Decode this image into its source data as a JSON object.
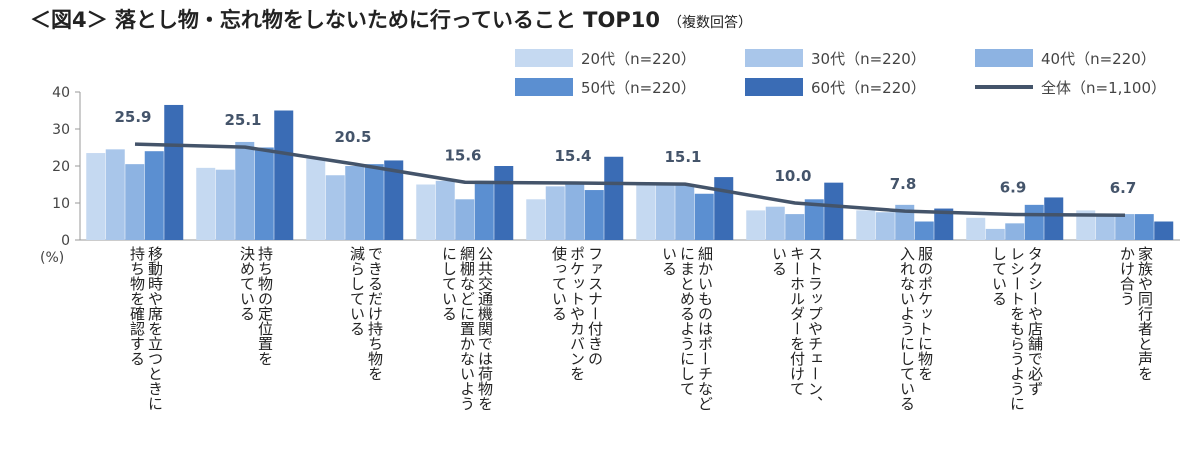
{
  "chart_data": {
    "type": "bar",
    "title": "＜図4＞ 落とし物・忘れ物をしないために行っていること TOP10",
    "subtitle": "（複数回答）",
    "ylabel": "(%)",
    "ylim": [
      0,
      40
    ],
    "yticks": [
      0,
      10,
      20,
      30,
      40
    ],
    "categories": [
      [
        "移動時や席を立つときに",
        "持ち物を確認する"
      ],
      [
        "持ち物の定位置を",
        "決めている"
      ],
      [
        "できるだけ持ち物を",
        "減らしている"
      ],
      [
        "公共交通機関では荷物を",
        "網棚などに置かないよう",
        "にしている"
      ],
      [
        "ファスナー付きの",
        "ポケットやカバンを",
        "使っている"
      ],
      [
        "細かいものはポーチなど",
        "にまとめるようにして",
        "いる"
      ],
      [
        "ストラップやチェーン、",
        "キーホルダーを付けて",
        "いる"
      ],
      [
        "服のポケットに物を",
        "入れないようにしている"
      ],
      [
        "タクシーや店舗で必ず",
        "レシートをもらうように",
        "している"
      ],
      [
        "家族や同行者と声を",
        "かけ合う"
      ]
    ],
    "series": [
      {
        "name": "20代（n=220）",
        "color": "#c5d9f1",
        "values": [
          23.5,
          19.5,
          22.0,
          15.0,
          11.0,
          15.0,
          8.0,
          8.0,
          6.0,
          8.0
        ]
      },
      {
        "name": "30代（n=220）",
        "color": "#a9c6ea",
        "values": [
          24.5,
          19.0,
          17.5,
          16.0,
          14.5,
          15.0,
          9.0,
          7.5,
          3.0,
          6.5
        ]
      },
      {
        "name": "40代（n=220）",
        "color": "#8db3e2",
        "values": [
          20.5,
          26.5,
          20.0,
          11.0,
          15.5,
          15.0,
          7.0,
          9.5,
          4.5,
          7.0
        ]
      },
      {
        "name": "50代（n=220）",
        "color": "#5b8fd1",
        "values": [
          24.0,
          25.0,
          20.5,
          16.0,
          13.5,
          12.5,
          11.0,
          5.0,
          9.5,
          7.0
        ]
      },
      {
        "name": "60代（n=220）",
        "color": "#3a6cb5",
        "values": [
          36.5,
          35.0,
          21.5,
          20.0,
          22.5,
          17.0,
          15.5,
          8.5,
          11.5,
          5.0
        ]
      }
    ],
    "total_series": {
      "name": "全体（n=1,100）",
      "color": "#44546a",
      "values": [
        25.9,
        25.1,
        20.5,
        15.6,
        15.4,
        15.1,
        10.0,
        7.8,
        6.9,
        6.7
      ]
    },
    "data_labels": [
      "25.9",
      "25.1",
      "20.5",
      "15.6",
      "15.4",
      "15.1",
      "10.0",
      "7.8",
      "6.9",
      "6.7"
    ],
    "legend_position": "top-right"
  }
}
